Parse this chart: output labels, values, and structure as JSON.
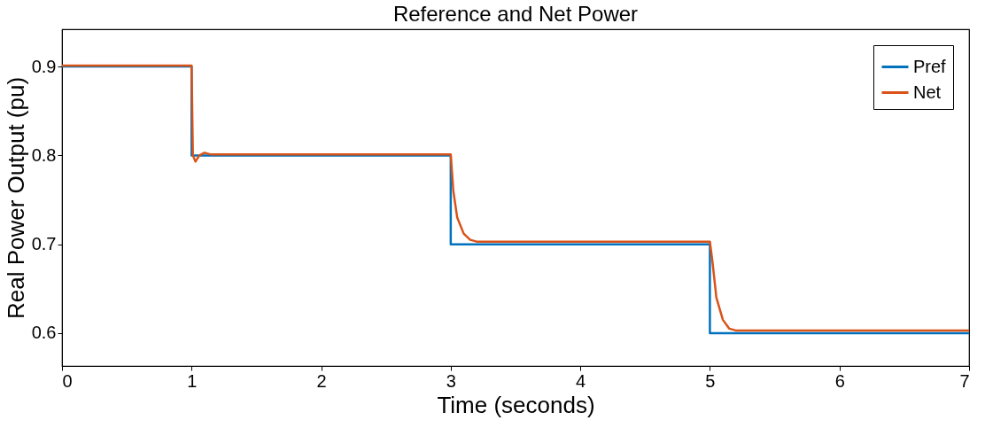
{
  "chart_data": {
    "type": "line",
    "title": "Reference and Net Power",
    "xlabel": "Time (seconds)",
    "ylabel": "Real Power Output (pu)",
    "xlim": [
      0,
      7
    ],
    "ylim": [
      0.563,
      0.942
    ],
    "xticks": [
      0,
      1,
      2,
      3,
      4,
      5,
      6,
      7
    ],
    "yticks": [
      0.6,
      0.7,
      0.8,
      0.9
    ],
    "grid": false,
    "legend": "top right",
    "line_style": "solid",
    "marker": "none",
    "series": [
      {
        "name": "Pref",
        "color": "#0072bd",
        "x": [
          0,
          1,
          1,
          3,
          3,
          5,
          5,
          7
        ],
        "values": [
          0.9,
          0.9,
          0.8,
          0.8,
          0.7,
          0.7,
          0.6,
          0.6
        ]
      },
      {
        "name": "Net",
        "color": "#d95319",
        "x": [
          0,
          1,
          1.01,
          1.03,
          1.06,
          1.1,
          1.15,
          1.3,
          3,
          3.02,
          3.05,
          3.1,
          3.15,
          3.2,
          3.4,
          5,
          5.02,
          5.05,
          5.1,
          5.15,
          5.2,
          5.4,
          7
        ],
        "values": [
          0.901,
          0.901,
          0.8,
          0.793,
          0.8,
          0.803,
          0.801,
          0.801,
          0.801,
          0.76,
          0.73,
          0.712,
          0.705,
          0.703,
          0.703,
          0.703,
          0.68,
          0.64,
          0.615,
          0.605,
          0.603,
          0.603,
          0.603
        ]
      }
    ]
  }
}
